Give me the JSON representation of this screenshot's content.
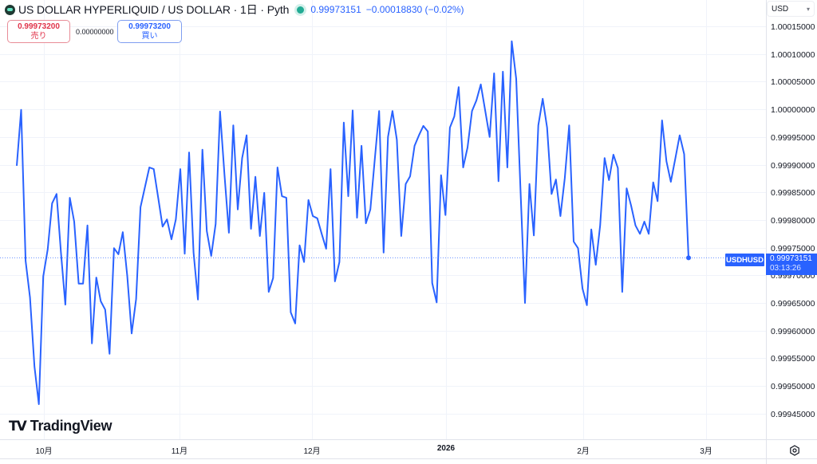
{
  "header": {
    "title": "US DOLLAR HYPERLIQUID / US DOLLAR · 1日 · Pyth",
    "last_price": "0.99973151",
    "change": "−0.00018830 (−0.02%)",
    "status": "market-open-dot"
  },
  "trade": {
    "sell_price": "0.99973200",
    "sell_label": "売り",
    "spread": "0.00000000",
    "buy_price": "0.99973200",
    "buy_label": "買い"
  },
  "currency_selector": {
    "value": "USD",
    "chevron": "▾"
  },
  "price_axis": {
    "labels": [
      "1.00015000",
      "1.00010000",
      "1.00005000",
      "1.00000000",
      "0.99995000",
      "0.99990000",
      "0.99985000",
      "0.99980000",
      "0.99975000",
      "0.99970000",
      "0.99965000",
      "0.99960000",
      "0.99955000",
      "0.99950000",
      "0.99945000"
    ]
  },
  "time_axis": {
    "labels": [
      "10月",
      "11月",
      "12月",
      "2026",
      "2月",
      "3月"
    ]
  },
  "last_price_tag": {
    "symbol": "USDHUSD",
    "price": "0.99973151",
    "countdown": "03:13:26"
  },
  "brand": {
    "mark": "TV",
    "name": "TradingView"
  },
  "colors": {
    "line": "#2962ff",
    "grid": "#f0f3fa",
    "up": "#22ab94",
    "sell": "#e0334a"
  },
  "chart_data": {
    "type": "line",
    "title": "US DOLLAR HYPERLIQUID / US DOLLAR · 1日 · Pyth",
    "xlabel": "",
    "ylabel": "USD",
    "ylim": [
      0.99943,
      1.00016
    ],
    "x_ticks": [
      "10月",
      "11月",
      "12月",
      "2026",
      "2月",
      "3月"
    ],
    "y_ticks": [
      1.00015,
      1.0001,
      1.00005,
      1.0,
      0.99995,
      0.9999,
      0.99985,
      0.9998,
      0.99975,
      0.9997,
      0.99965,
      0.9996,
      0.99955,
      0.9995,
      0.99945
    ],
    "grid": true,
    "legend_position": "none",
    "series": [
      {
        "name": "USDHUSD",
        "values": [
          0.999898,
          0.999999,
          0.999726,
          0.99966,
          0.999535,
          0.999467,
          0.999698,
          0.999747,
          0.99983,
          0.999847,
          0.999741,
          0.999647,
          0.99984,
          0.999797,
          0.999685,
          0.999685,
          0.99979,
          0.999577,
          0.999696,
          0.999653,
          0.999638,
          0.999558,
          0.999749,
          0.999738,
          0.999778,
          0.999699,
          0.999595,
          0.999657,
          0.999823,
          0.999859,
          0.999895,
          0.999892,
          0.99984,
          0.999788,
          0.999801,
          0.999765,
          0.999801,
          0.999892,
          0.999739,
          0.999922,
          0.999741,
          0.999656,
          0.999927,
          0.99978,
          0.999735,
          0.999793,
          0.999996,
          0.999881,
          0.999777,
          0.999971,
          0.999819,
          0.999912,
          0.999953,
          0.999784,
          0.999878,
          0.999771,
          0.999849,
          0.99967,
          0.999695,
          0.999895,
          0.999843,
          0.99984,
          0.999633,
          0.999613,
          0.999754,
          0.999724,
          0.999836,
          0.999807,
          0.999803,
          0.999775,
          0.999748,
          0.999892,
          0.999689,
          0.999724,
          0.999976,
          0.999843,
          0.999998,
          0.999804,
          0.999934,
          0.999794,
          0.999819,
          0.999909,
          0.999997,
          0.999741,
          0.99995,
          0.999997,
          0.999945,
          0.999771,
          0.999865,
          0.999879,
          0.999934,
          0.999953,
          0.99997,
          0.99996,
          0.999686,
          0.999651,
          0.999881,
          0.999809,
          0.999967,
          0.999987,
          1.00004,
          0.999895,
          0.999931,
          0.999997,
          1.000016,
          1.000045,
          0.999997,
          0.99995,
          1.000065,
          0.99987,
          1.000068,
          0.999895,
          1.000123,
          1.000055,
          0.99985,
          0.99965,
          0.999865,
          0.999772,
          0.999971,
          1.000019,
          0.999967,
          0.999847,
          0.999873,
          0.999807,
          0.999876,
          0.999971,
          0.999761,
          0.999749,
          0.999676,
          0.999646,
          0.999783,
          0.999719,
          0.99979,
          0.999912,
          0.999872,
          0.999918,
          0.999894,
          0.99967,
          0.999857,
          0.999826,
          0.99979,
          0.999775,
          0.999797,
          0.999775,
          0.999868,
          0.999834,
          0.99998,
          0.999906,
          0.999869,
          0.999911,
          0.999953,
          0.999919,
          0.99973151
        ]
      }
    ],
    "last_value": 0.99973151
  }
}
